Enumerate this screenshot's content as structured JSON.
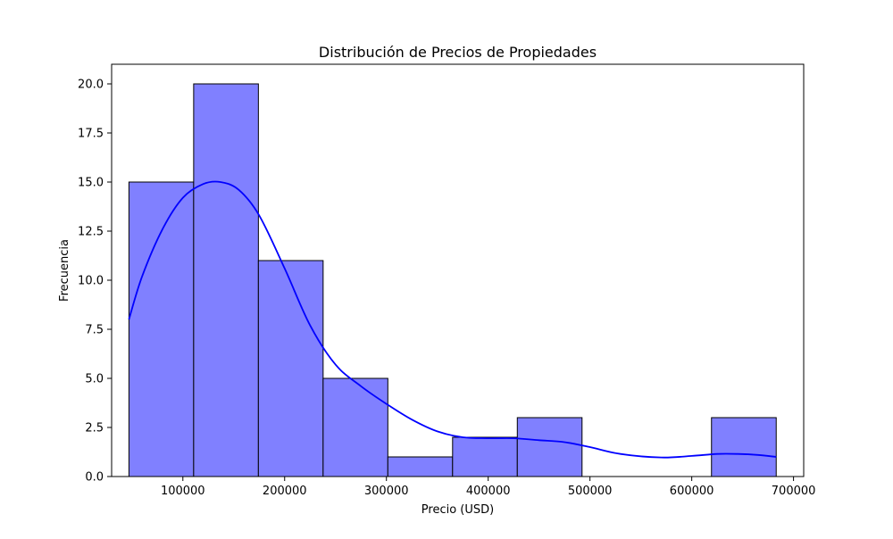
{
  "chart_data": {
    "type": "bar",
    "title": "Distribución de Precios de Propiedades",
    "xlabel": "Precio (USD)",
    "ylabel": "Frecuencia",
    "xlim": [
      30000,
      710000
    ],
    "ylim": [
      0,
      21
    ],
    "x_ticks": [
      100000,
      200000,
      300000,
      400000,
      500000,
      600000,
      700000
    ],
    "y_ticks": [
      0.0,
      2.5,
      5.0,
      7.5,
      10.0,
      12.5,
      15.0,
      17.5,
      20.0
    ],
    "y_tick_labels": [
      "0.0",
      "2.5",
      "5.0",
      "7.5",
      "10.0",
      "12.5",
      "15.0",
      "17.5",
      "20.0"
    ],
    "bins": [
      {
        "x0": 47000,
        "x1": 110600,
        "count": 15
      },
      {
        "x0": 110600,
        "x1": 174200,
        "count": 20
      },
      {
        "x0": 174200,
        "x1": 237800,
        "count": 11
      },
      {
        "x0": 237800,
        "x1": 301400,
        "count": 5
      },
      {
        "x0": 301400,
        "x1": 365000,
        "count": 1
      },
      {
        "x0": 365000,
        "x1": 428600,
        "count": 2
      },
      {
        "x0": 428600,
        "x1": 492200,
        "count": 3
      },
      {
        "x0": 492200,
        "x1": 555800,
        "count": 0
      },
      {
        "x0": 555800,
        "x1": 619400,
        "count": 0
      },
      {
        "x0": 619400,
        "x1": 683000,
        "count": 3
      }
    ],
    "kde": {
      "x": [
        47000,
        60000,
        80000,
        100000,
        120000,
        137000,
        155000,
        175000,
        200000,
        225000,
        250000,
        275000,
        300000,
        325000,
        350000,
        375000,
        400000,
        425000,
        450000,
        475000,
        500000,
        530000,
        570000,
        600000,
        625000,
        645000,
        665000,
        683000
      ],
      "y": [
        8.0,
        10.2,
        12.6,
        14.2,
        14.9,
        15.0,
        14.6,
        13.3,
        10.6,
        7.7,
        5.7,
        4.6,
        3.7,
        2.9,
        2.3,
        2.0,
        1.95,
        1.95,
        1.85,
        1.75,
        1.5,
        1.15,
        0.97,
        1.05,
        1.15,
        1.15,
        1.1,
        1.0
      ]
    },
    "grid": false,
    "colors": {
      "bar_fill": "#8080ff",
      "bar_edge": "#000000",
      "kde_line": "#0000ff"
    }
  }
}
